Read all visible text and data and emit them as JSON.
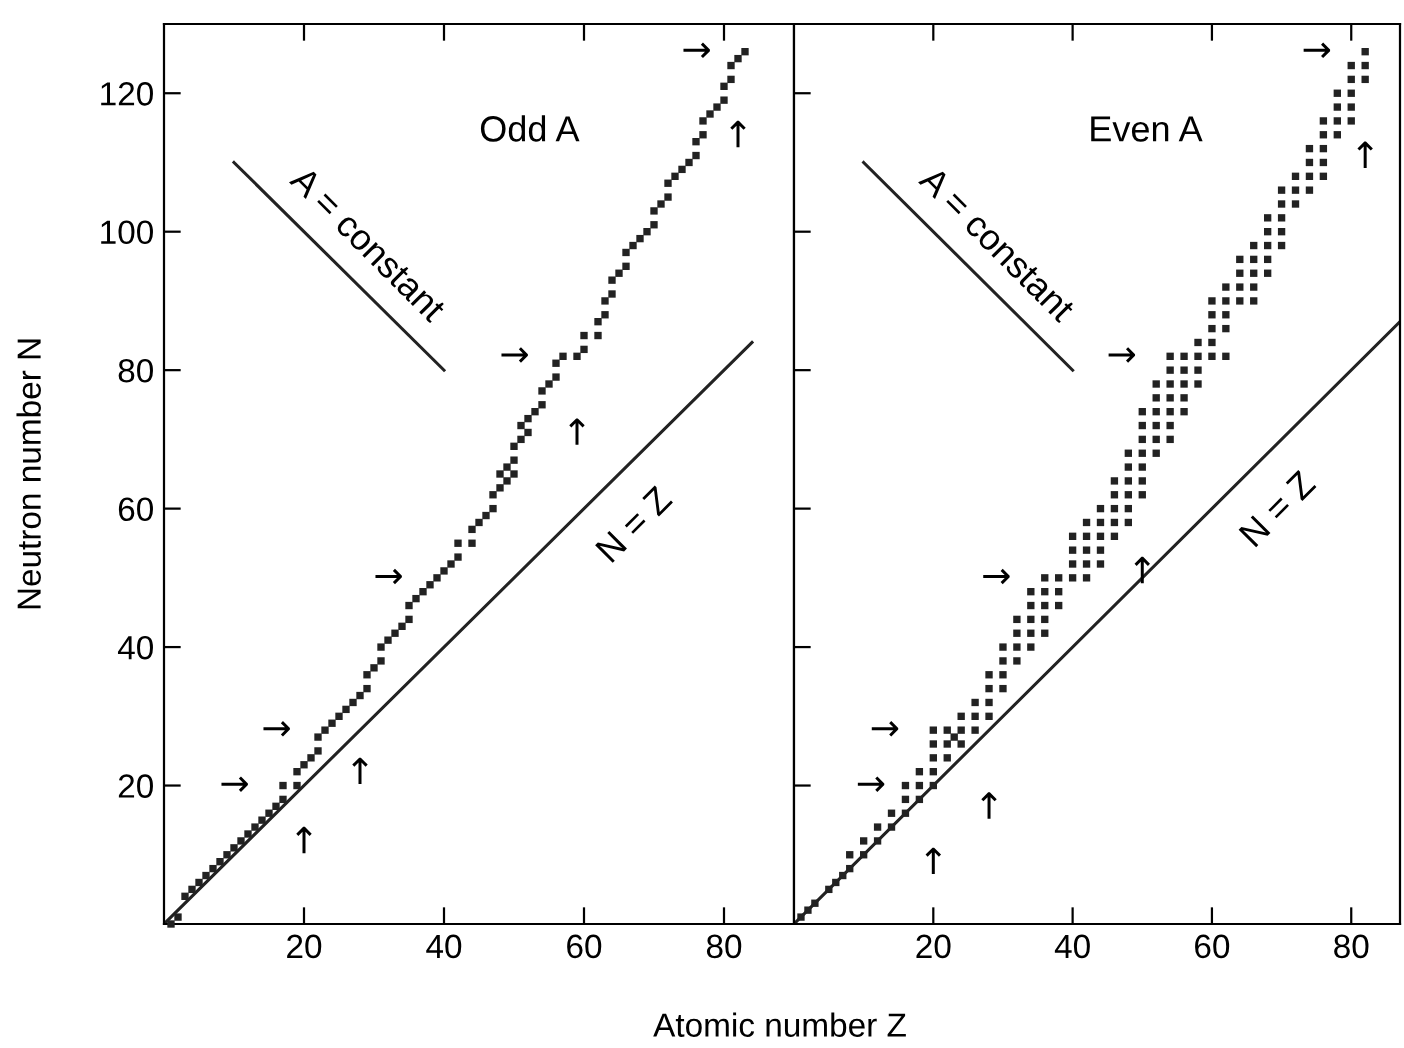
{
  "chart_data": [
    {
      "type": "scatter",
      "title": "Odd A",
      "ylabel": "Neutron number N",
      "xlabel": "Atomic number Z",
      "xlim": [
        0,
        90
      ],
      "ylim": [
        0,
        130
      ],
      "xticks": [
        20,
        40,
        60,
        80
      ],
      "yticks": [
        20,
        40,
        60,
        80,
        100,
        120
      ],
      "grid": false,
      "legend": false,
      "series": [
        {
          "color": "#222222",
          "marker": "square",
          "x": [
            1,
            2,
            3,
            4,
            5,
            6,
            7,
            8,
            9,
            10,
            11,
            12,
            13,
            14,
            15,
            16,
            17,
            17,
            19,
            19,
            20,
            21,
            22,
            22,
            23,
            24,
            25,
            26,
            27,
            28,
            29,
            29,
            30,
            31,
            31,
            32,
            33,
            34,
            35,
            35,
            36,
            37,
            38,
            39,
            40,
            41,
            42,
            42,
            44,
            44,
            45,
            46,
            47,
            47,
            48,
            48,
            49,
            49,
            50,
            50,
            50,
            51,
            51,
            52,
            52,
            53,
            54,
            54,
            55,
            56,
            56,
            57,
            59,
            60,
            60,
            62,
            62,
            63,
            63,
            64,
            64,
            65,
            66,
            66,
            67,
            68,
            69,
            70,
            70,
            71,
            72,
            72,
            73,
            74,
            75,
            76,
            76,
            77,
            77,
            78,
            79,
            80,
            80,
            81,
            81,
            82,
            83
          ],
          "values": [
            0,
            1,
            4,
            5,
            6,
            7,
            8,
            9,
            10,
            11,
            12,
            13,
            14,
            15,
            16,
            17,
            18,
            20,
            20,
            22,
            23,
            24,
            25,
            27,
            28,
            29,
            30,
            31,
            32,
            33,
            34,
            36,
            37,
            38,
            40,
            41,
            42,
            43,
            44,
            46,
            47,
            48,
            49,
            50,
            51,
            52,
            53,
            55,
            55,
            57,
            58,
            59,
            60,
            62,
            63,
            65,
            64,
            66,
            65,
            67,
            69,
            70,
            72,
            71,
            73,
            74,
            75,
            77,
            78,
            79,
            81,
            82,
            82,
            83,
            85,
            85,
            87,
            88,
            90,
            91,
            93,
            94,
            95,
            97,
            98,
            99,
            100,
            101,
            103,
            104,
            105,
            107,
            108,
            109,
            110,
            111,
            113,
            114,
            116,
            117,
            118,
            119,
            121,
            122,
            124,
            125,
            126
          ]
        },
        {
          "type": "line",
          "name": "N = Z",
          "color": "#222222",
          "x": [
            0,
            84
          ],
          "values": [
            0,
            84
          ]
        },
        {
          "type": "line",
          "name": "A = constant",
          "color": "#222222",
          "x": [
            10,
            40
          ],
          "values": [
            110,
            80
          ]
        }
      ],
      "annotations": [
        {
          "text": "→",
          "x": 17,
          "y": 20
        },
        {
          "text": "→",
          "x": 23,
          "y": 28
        },
        {
          "text": "→",
          "x": 39,
          "y": 50
        },
        {
          "text": "→",
          "x": 57,
          "y": 82
        },
        {
          "text": "→",
          "x": 83,
          "y": 126
        },
        {
          "text": "↑",
          "x": 20,
          "y": 23
        },
        {
          "text": "↑",
          "x": 28,
          "y": 33
        },
        {
          "text": "↑",
          "x": 59,
          "y": 82
        },
        {
          "text": "↑",
          "x": 82,
          "y": 125
        }
      ]
    },
    {
      "type": "scatter",
      "title": "Even A",
      "xlim": [
        0,
        87
      ],
      "ylim": [
        0,
        130
      ],
      "xticks": [
        20,
        40,
        60,
        80
      ],
      "yticks": [
        {
          "value": 20,
          "label": null
        },
        {
          "value": 40,
          "label": null
        },
        {
          "value": 60,
          "label": null
        },
        {
          "value": 80,
          "label": null
        },
        {
          "value": 100,
          "label": null
        },
        {
          "value": 120,
          "label": null
        }
      ],
      "tick_labels": "x",
      "grid": false,
      "legend": false,
      "series": [
        {
          "color": "#222222",
          "marker": "square",
          "x": [
            1,
            2,
            3,
            5,
            6,
            7,
            8,
            8,
            10,
            10,
            12,
            12,
            14,
            14,
            16,
            16,
            16,
            18,
            18,
            18,
            20,
            20,
            20,
            20,
            20,
            22,
            22,
            22,
            23,
            24,
            24,
            24,
            26,
            26,
            26,
            28,
            28,
            28,
            28,
            30,
            30,
            30,
            30,
            32,
            32,
            32,
            32,
            34,
            34,
            34,
            34,
            34,
            36,
            36,
            36,
            36,
            36,
            38,
            38,
            38,
            40,
            40,
            40,
            40,
            42,
            42,
            42,
            42,
            42,
            44,
            44,
            44,
            44,
            44,
            46,
            46,
            46,
            46,
            46,
            48,
            48,
            48,
            48,
            48,
            48,
            50,
            50,
            50,
            50,
            50,
            50,
            50,
            52,
            52,
            52,
            52,
            52,
            52,
            54,
            54,
            54,
            54,
            54,
            54,
            54,
            56,
            56,
            56,
            56,
            56,
            58,
            58,
            58,
            58,
            60,
            60,
            60,
            60,
            60,
            62,
            62,
            62,
            62,
            62,
            64,
            64,
            64,
            64,
            66,
            66,
            66,
            66,
            66,
            68,
            68,
            68,
            68,
            68,
            70,
            70,
            70,
            70,
            70,
            72,
            72,
            72,
            74,
            74,
            74,
            74,
            76,
            76,
            76,
            76,
            76,
            78,
            78,
            78,
            78,
            80,
            80,
            80,
            80,
            80,
            82,
            82,
            82
          ],
          "values": [
            1,
            2,
            3,
            5,
            6,
            7,
            8,
            10,
            10,
            12,
            12,
            14,
            14,
            16,
            16,
            18,
            20,
            18,
            20,
            22,
            20,
            22,
            24,
            26,
            28,
            24,
            26,
            28,
            27,
            26,
            28,
            30,
            28,
            30,
            32,
            30,
            32,
            34,
            36,
            34,
            36,
            38,
            40,
            38,
            40,
            42,
            44,
            40,
            42,
            44,
            46,
            48,
            42,
            44,
            46,
            48,
            50,
            46,
            48,
            50,
            50,
            52,
            54,
            56,
            50,
            52,
            54,
            56,
            58,
            52,
            54,
            56,
            58,
            60,
            56,
            58,
            60,
            62,
            64,
            58,
            60,
            62,
            64,
            66,
            68,
            62,
            64,
            66,
            68,
            70,
            72,
            74,
            68,
            70,
            72,
            74,
            76,
            78,
            70,
            72,
            74,
            76,
            78,
            80,
            82,
            74,
            76,
            78,
            80,
            82,
            78,
            80,
            82,
            84,
            82,
            84,
            86,
            88,
            90,
            82,
            86,
            88,
            90,
            92,
            90,
            92,
            94,
            96,
            90,
            92,
            94,
            96,
            98,
            94,
            96,
            98,
            100,
            102,
            98,
            100,
            102,
            104,
            106,
            104,
            106,
            108,
            106,
            108,
            110,
            112,
            108,
            110,
            112,
            114,
            116,
            114,
            116,
            118,
            120,
            116,
            118,
            120,
            122,
            124,
            122,
            124,
            126
          ]
        },
        {
          "type": "line",
          "name": "N = Z",
          "color": "#222222",
          "x": [
            0,
            87
          ],
          "values": [
            0,
            87
          ]
        },
        {
          "type": "line",
          "name": "A = constant",
          "color": "#222222",
          "x": [
            10,
            40
          ],
          "values": [
            110,
            80
          ]
        }
      ],
      "annotations": [
        {
          "text": "→",
          "x": 18,
          "y": 20
        },
        {
          "text": "→",
          "x": 20,
          "y": 28
        },
        {
          "text": "→",
          "x": 36,
          "y": 50
        },
        {
          "text": "→",
          "x": 54,
          "y": 82
        },
        {
          "text": "→",
          "x": 82,
          "y": 126
        },
        {
          "text": "↑",
          "x": 20,
          "y": 20
        },
        {
          "text": "↑",
          "x": 28,
          "y": 28
        },
        {
          "text": "↑",
          "x": 50,
          "y": 62
        },
        {
          "text": "↑",
          "x": 82,
          "y": 122
        }
      ]
    }
  ]
}
